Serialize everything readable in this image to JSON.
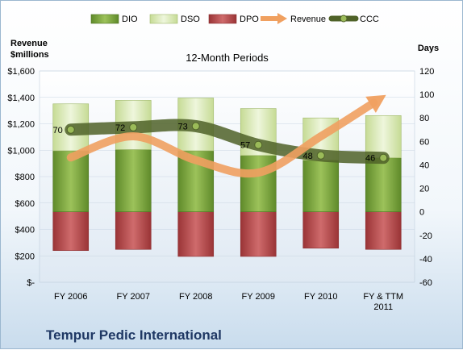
{
  "footer": {
    "company": "Tempur Pedic International"
  },
  "chart_data": {
    "type": "bar",
    "title": "12-Month Periods",
    "left_axis": {
      "label_line1": "Revenue",
      "label_line2": "$millions",
      "ylim": [
        0,
        1600
      ],
      "ticks": [
        "$-",
        "$200",
        "$400",
        "$600",
        "$800",
        "$1,000",
        "$1,200",
        "$1,400",
        "$1,600"
      ]
    },
    "right_axis": {
      "label": "Days",
      "ylim": [
        -60,
        120
      ],
      "ticks": [
        "-60",
        "-40",
        "-20",
        "0",
        "20",
        "40",
        "60",
        "80",
        "100",
        "120"
      ]
    },
    "categories": [
      [
        "FY 2006"
      ],
      [
        "FY 2007"
      ],
      [
        "FY 2008"
      ],
      [
        "FY 2009"
      ],
      [
        "FY 2010"
      ],
      [
        "FY & TTM",
        "2011"
      ]
    ],
    "legend_position": "top",
    "series": [
      {
        "name": "DIO",
        "kind": "stacked-bar",
        "axis": "right",
        "color": "#7aa23c",
        "values": [
          52,
          53,
          52,
          48,
          44,
          46
        ]
      },
      {
        "name": "DSO",
        "kind": "stacked-bar",
        "axis": "right",
        "color": "#d6e6b0",
        "values": [
          40,
          42,
          45,
          40,
          36,
          36
        ]
      },
      {
        "name": "DPO",
        "kind": "negative-bar",
        "axis": "right",
        "color": "#b94a4c",
        "values": [
          -33,
          -32,
          -38,
          -38,
          -31,
          -32
        ]
      },
      {
        "name": "Revenue",
        "kind": "line",
        "axis": "left",
        "color": "#f0a060",
        "values": [
          945,
          1105,
          925,
          830,
          1105,
          1405
        ]
      },
      {
        "name": "CCC",
        "kind": "line",
        "axis": "right",
        "color": "#4f6228",
        "values": [
          70,
          72,
          73,
          57,
          48,
          46
        ],
        "labels": [
          "70",
          "72",
          "73",
          "57",
          "48",
          "46"
        ]
      }
    ]
  }
}
